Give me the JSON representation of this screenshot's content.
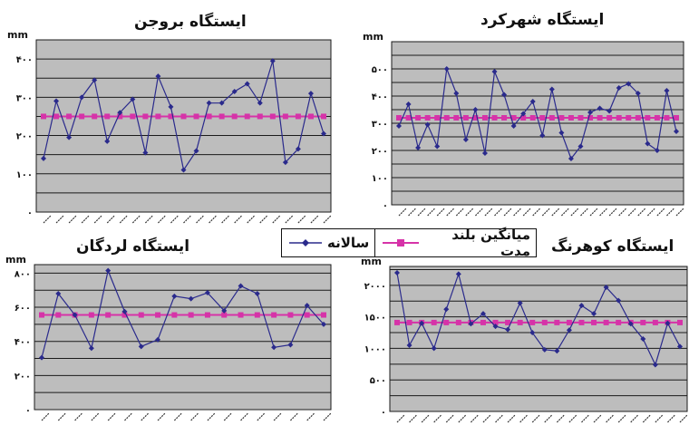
{
  "legend": {
    "annual": "سالانه",
    "long_term_mean": "میانگین بلند مدت"
  },
  "colors": {
    "annual": "#2a2a8c",
    "mean": "#d633a8",
    "plot_bg": "#bdbdbd",
    "grid": "#1a1a1a"
  },
  "chart_data": [
    {
      "type": "line",
      "title": "ایستگاه بروجن",
      "ylabel": "mm",
      "ylim": [
        0,
        450
      ],
      "yticks": [
        0,
        100,
        200,
        300,
        400
      ],
      "ytick_labels": [
        "۰",
        "۱۰۰",
        "۲۰۰",
        "۳۰۰",
        "۴۰۰"
      ],
      "grid": true,
      "series": [
        {
          "name": "سالانه",
          "values": [
            140,
            290,
            195,
            300,
            345,
            185,
            260,
            295,
            155,
            355,
            275,
            110,
            160,
            285,
            285,
            315,
            335,
            285,
            395,
            130,
            165,
            310,
            205
          ]
        },
        {
          "name": "میانگین بلند مدت",
          "values": [
            250,
            250,
            250,
            250,
            250,
            250,
            250,
            250,
            250,
            250,
            250,
            250,
            250,
            250,
            250,
            250,
            250,
            250,
            250,
            250,
            250,
            250,
            250
          ]
        }
      ]
    },
    {
      "type": "line",
      "title": "ایستگاه شهرکرد",
      "ylabel": "mm",
      "ylim": [
        0,
        600
      ],
      "yticks": [
        0,
        100,
        200,
        300,
        400,
        500
      ],
      "ytick_labels": [
        "۰",
        "۱۰۰",
        "۲۰۰",
        "۳۰۰",
        "۴۰۰",
        "۵۰۰"
      ],
      "grid": true,
      "series": [
        {
          "name": "سالانه",
          "values": [
            290,
            370,
            210,
            295,
            215,
            500,
            410,
            240,
            350,
            190,
            490,
            405,
            290,
            335,
            380,
            255,
            425,
            265,
            170,
            215,
            340,
            355,
            345,
            430,
            445,
            410,
            225,
            200,
            420,
            270
          ]
        },
        {
          "name": "میانگین بلند مدت",
          "values": [
            320,
            320,
            320,
            320,
            320,
            320,
            320,
            320,
            320,
            320,
            320,
            320,
            320,
            320,
            320,
            320,
            320,
            320,
            320,
            320,
            320,
            320,
            320,
            320,
            320,
            320,
            320,
            320,
            320,
            320
          ]
        }
      ]
    },
    {
      "type": "line",
      "title": "ایستگاه لردگان",
      "ylabel": "mm",
      "ylim": [
        0,
        850
      ],
      "yticks": [
        0,
        200,
        400,
        600,
        800
      ],
      "ytick_labels": [
        "۰",
        "۲۰۰",
        "۴۰۰",
        "۶۰۰",
        "۸۰۰"
      ],
      "grid": true,
      "series": [
        {
          "name": "سالانه",
          "values": [
            305,
            680,
            555,
            360,
            815,
            575,
            370,
            410,
            665,
            650,
            685,
            580,
            725,
            680,
            365,
            380,
            610,
            500
          ]
        },
        {
          "name": "میانگین بلند مدت",
          "values": [
            555,
            555,
            555,
            555,
            555,
            555,
            555,
            555,
            555,
            555,
            555,
            555,
            555,
            555,
            555,
            555,
            555,
            555
          ]
        }
      ]
    },
    {
      "type": "line",
      "title": "ایستگاه کوهرنگ",
      "ylabel": "mm",
      "ylim": [
        0,
        2300
      ],
      "yticks": [
        0,
        500,
        1000,
        1500,
        2000
      ],
      "ytick_labels": [
        "۰",
        "۵۰۰",
        "۱۰۰۰",
        "۱۵۰۰",
        "۲۰۰۰"
      ],
      "grid": true,
      "series": [
        {
          "name": "سالانه",
          "values": [
            2200,
            1050,
            1400,
            1000,
            1620,
            2180,
            1390,
            1550,
            1350,
            1300,
            1720,
            1250,
            980,
            960,
            1290,
            1680,
            1550,
            1970,
            1760,
            1390,
            1150,
            740,
            1400,
            1030
          ]
        },
        {
          "name": "میانگین بلند مدت",
          "values": [
            1410,
            1410,
            1410,
            1410,
            1410,
            1410,
            1410,
            1410,
            1410,
            1410,
            1410,
            1410,
            1410,
            1410,
            1410,
            1410,
            1410,
            1410,
            1410,
            1410,
            1410,
            1410,
            1410,
            1410
          ]
        }
      ]
    }
  ]
}
